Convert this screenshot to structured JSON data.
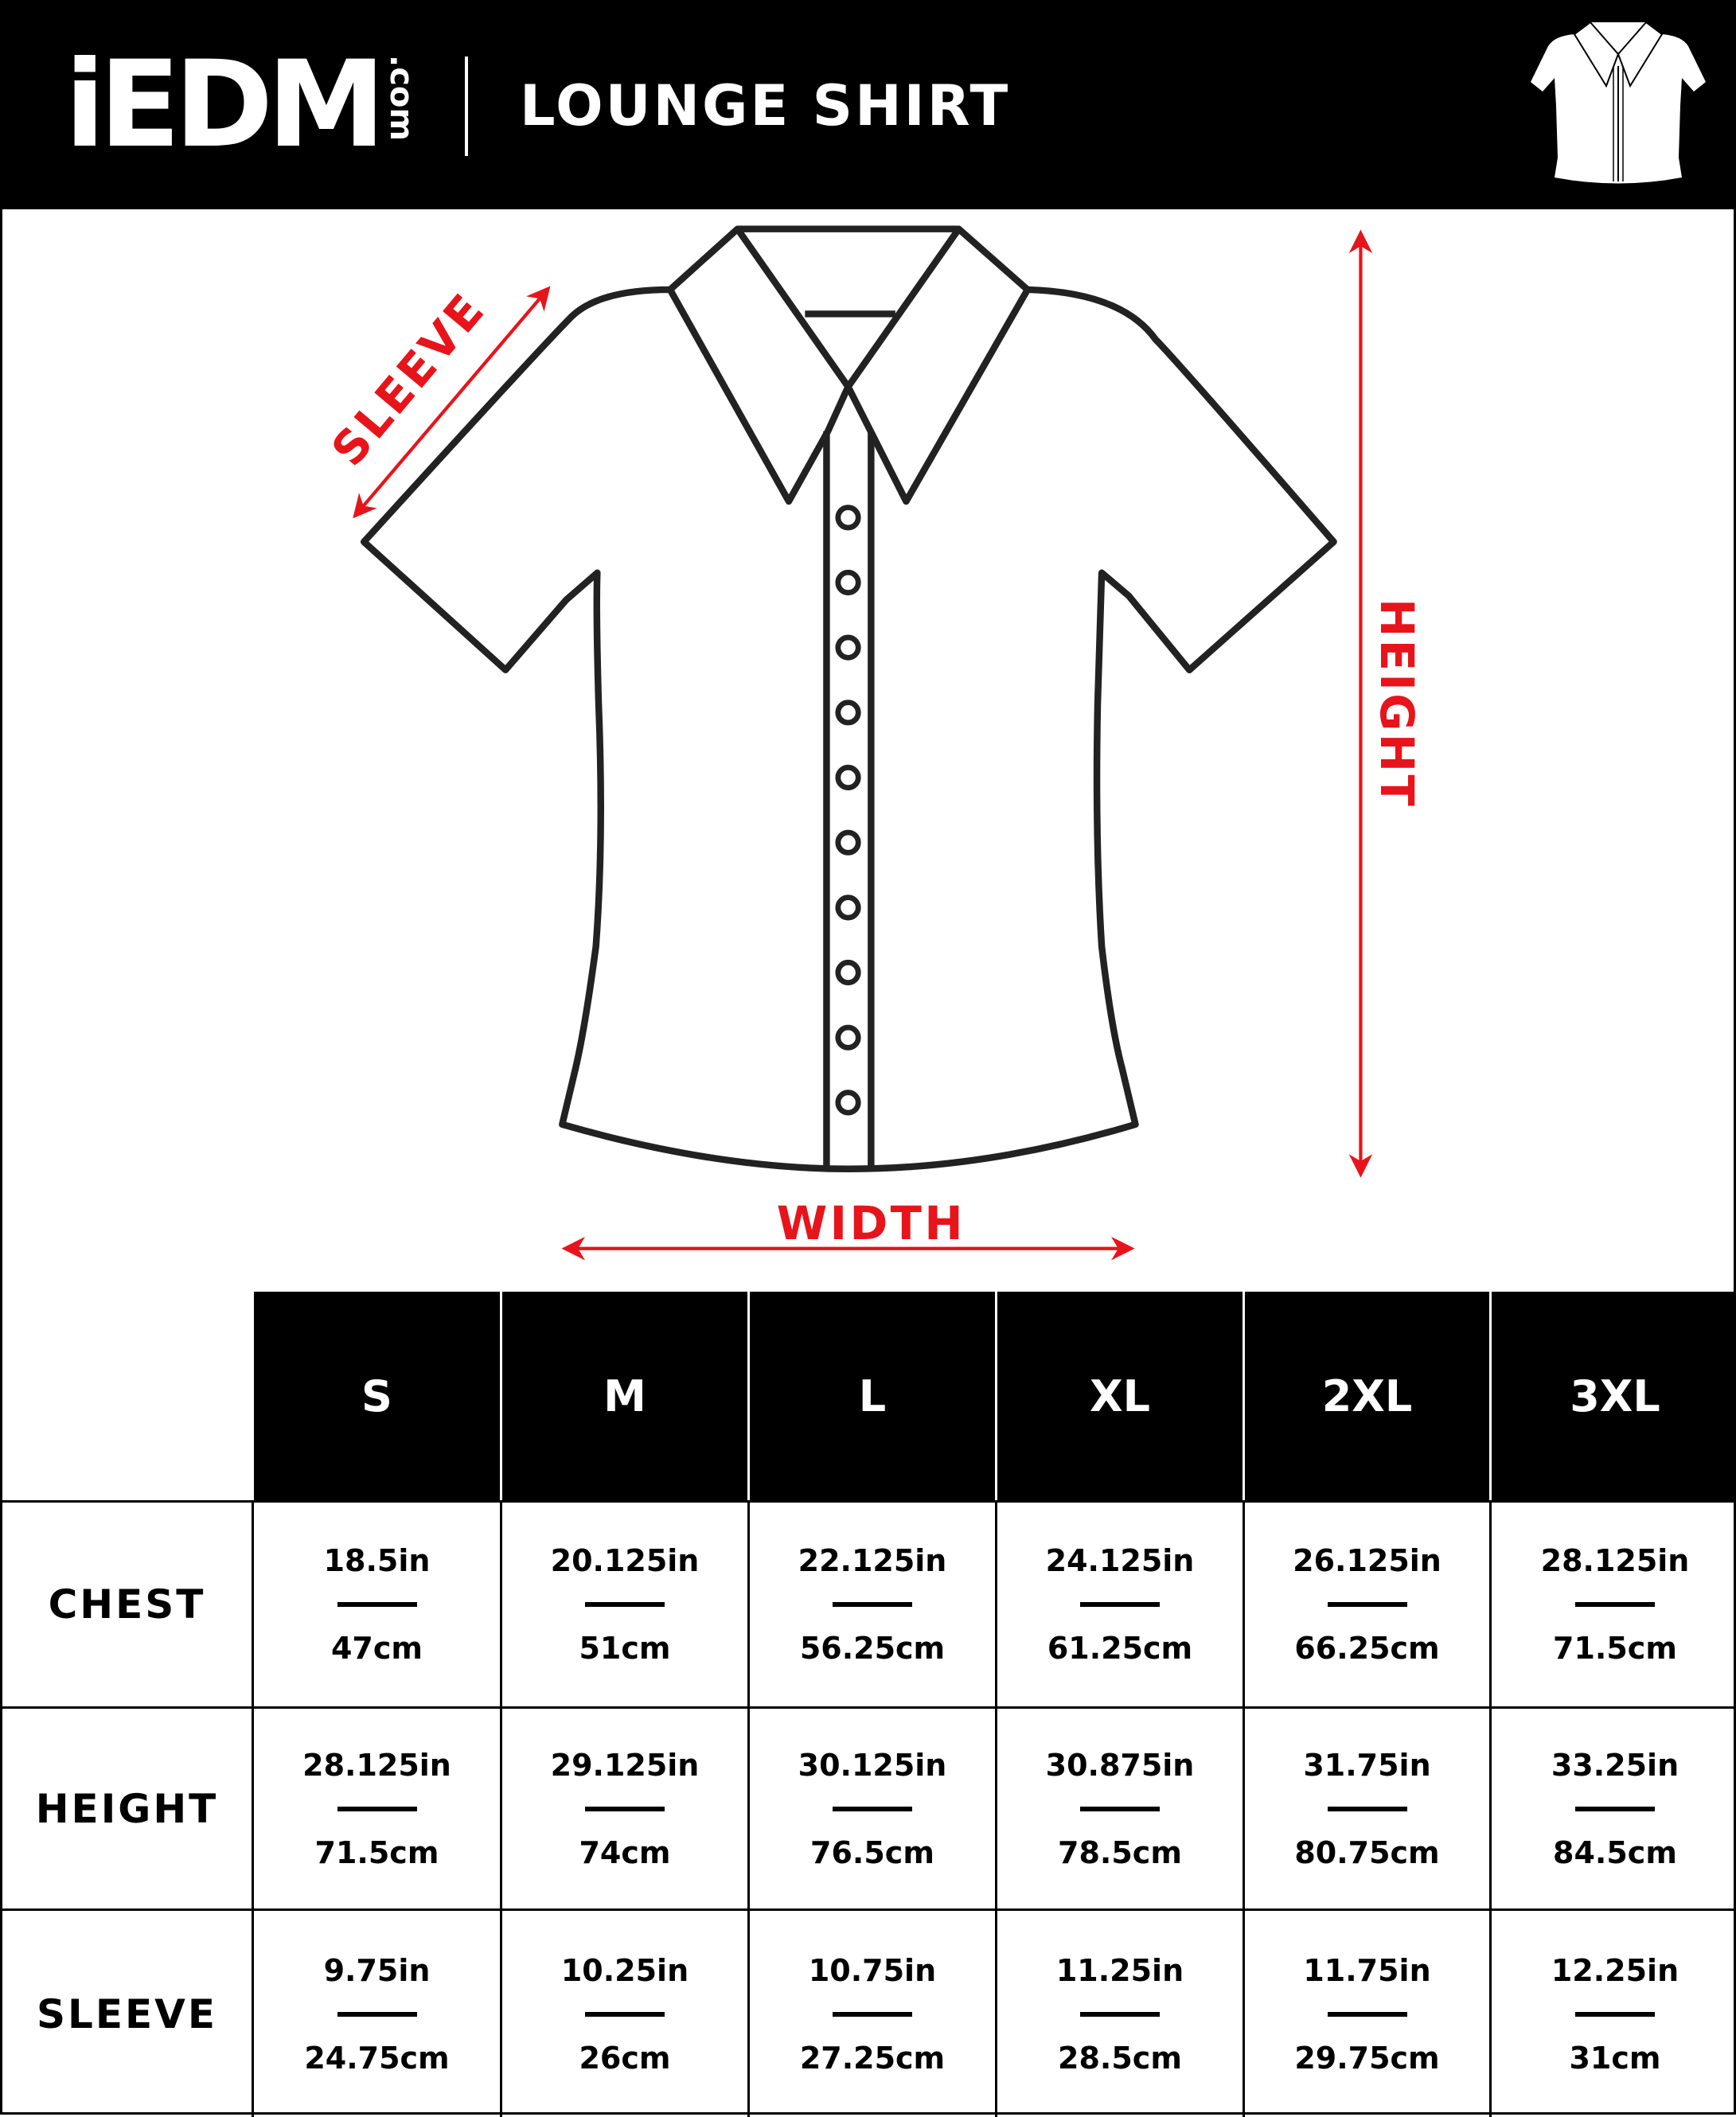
{
  "header": {
    "logo_text": "iEDM.com",
    "logo_main": "iEDM",
    "logo_suffix": ".com",
    "title": "LOUNGE SHIRT",
    "icon": "shirt-icon"
  },
  "diagram": {
    "labels": {
      "sleeve": "SLEEVE",
      "width": "WIDTH",
      "height": "HEIGHT"
    },
    "arrow_color": "#e8141b",
    "button_count": 10
  },
  "table": {
    "sizes": [
      "S",
      "M",
      "L",
      "XL",
      "2XL",
      "3XL"
    ],
    "rows": [
      {
        "label": "CHEST",
        "in": [
          "18.5in",
          "20.125in",
          "22.125in",
          "24.125in",
          "26.125in",
          "28.125in"
        ],
        "cm": [
          "47cm",
          "51cm",
          "56.25cm",
          "61.25cm",
          "66.25cm",
          "71.5cm"
        ]
      },
      {
        "label": "HEIGHT",
        "in": [
          "28.125in",
          "29.125in",
          "30.125in",
          "30.875in",
          "31.75in",
          "33.25in"
        ],
        "cm": [
          "71.5cm",
          "74cm",
          "76.5cm",
          "78.5cm",
          "80.75cm",
          "84.5cm"
        ]
      },
      {
        "label": "SLEEVE",
        "in": [
          "9.75in",
          "10.25in",
          "10.75in",
          "11.25in",
          "11.75in",
          "12.25in"
        ],
        "cm": [
          "24.75cm",
          "26cm",
          "27.25cm",
          "28.5cm",
          "29.75cm",
          "31cm"
        ]
      }
    ]
  }
}
